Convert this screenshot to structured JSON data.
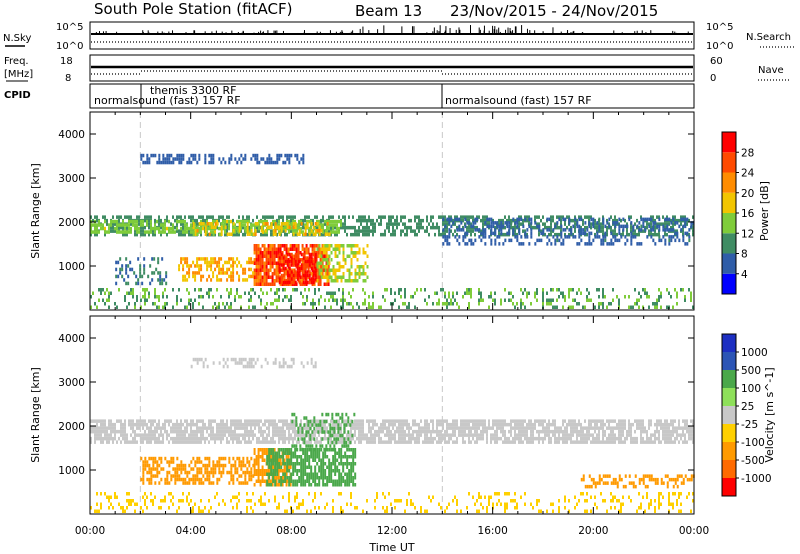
{
  "header": {
    "station": "South Pole Station (fitACF)",
    "beam": "Beam 13",
    "dates": "23/Nov/2015 - 24/Nov/2015"
  },
  "strip1": {
    "left_label": "N.Sky",
    "left_ticks": [
      "10^5",
      "10^0"
    ],
    "right_ticks": [
      "10^5",
      "10^0"
    ],
    "right_label": "N.Search"
  },
  "strip2": {
    "left_label_1": "Freq.",
    "left_label_2": "[MHz]",
    "left_ticks": [
      "18",
      "8"
    ],
    "right_ticks": [
      "60",
      "0"
    ],
    "right_label": "Nave"
  },
  "cpid": {
    "label": "CPID",
    "segments": [
      {
        "text": "normalsound (fast) 157 RF",
        "start_hour": 0
      },
      {
        "text": "themis 3300 RF",
        "start_hour": 2
      },
      {
        "text": "normalsound (fast) 157 RF",
        "start_hour": 14
      }
    ]
  },
  "colors": {
    "power": [
      "#0000ff",
      "#2f5da8",
      "#3f8c63",
      "#7fcc3a",
      "#f2c500",
      "#ff8c00",
      "#ff4a00",
      "#ff0000"
    ],
    "velocity": [
      "#ff0000",
      "#ff6a00",
      "#ff9a00",
      "#ffd000",
      "#c8c8c8",
      "#8ee05a",
      "#4aa84a",
      "#2c55b5",
      "#1d2fc2"
    ],
    "ground": "#c0c0c0"
  },
  "chart_data": [
    {
      "type": "heatmap",
      "panel": "power",
      "xlabel": "",
      "ylabel": "Slant Range [km]",
      "xlim_hours": [
        0,
        24
      ],
      "ylim": [
        0,
        4500
      ],
      "y_ticks": [
        1000,
        2000,
        3000,
        4000
      ],
      "colorbar_label": "Power [dB]",
      "colorbar_ticks": [
        4,
        8,
        12,
        16,
        20,
        24,
        28
      ],
      "colorbar_range": [
        0,
        32
      ],
      "regions": [
        {
          "x0": 0.0,
          "x1": 24.0,
          "y0": 1700,
          "y1": 2150,
          "value": 10,
          "density": 0.55
        },
        {
          "x0": 0.0,
          "x1": 10.0,
          "y0": 1750,
          "y1": 2050,
          "value": 14,
          "density": 0.6
        },
        {
          "x0": 4.0,
          "x1": 9.5,
          "y0": 1700,
          "y1": 2000,
          "value": 18,
          "density": 0.4
        },
        {
          "x0": 6.5,
          "x1": 9.5,
          "y0": 600,
          "y1": 1500,
          "value": 26,
          "density": 0.85
        },
        {
          "x0": 7.5,
          "x1": 9.0,
          "y0": 650,
          "y1": 1300,
          "value": 30,
          "density": 0.7
        },
        {
          "x0": 9.0,
          "x1": 11.0,
          "y0": 700,
          "y1": 1500,
          "value": 16,
          "density": 0.5
        },
        {
          "x0": 3.5,
          "x1": 6.5,
          "y0": 650,
          "y1": 1200,
          "value": 20,
          "density": 0.5
        },
        {
          "x0": 1.0,
          "x1": 3.0,
          "y0": 600,
          "y1": 1200,
          "value": 8,
          "density": 0.3
        },
        {
          "x0": 2.0,
          "x1": 8.5,
          "y0": 3350,
          "y1": 3550,
          "value": 6,
          "density": 0.45
        },
        {
          "x0": 14.0,
          "x1": 24.0,
          "y0": 1500,
          "y1": 2100,
          "value": 7,
          "density": 0.4
        },
        {
          "x0": 0.0,
          "x1": 24.0,
          "y0": 100,
          "y1": 500,
          "value": 12,
          "density": 0.25
        }
      ]
    },
    {
      "type": "heatmap",
      "panel": "velocity",
      "xlabel": "Time UT",
      "ylabel": "Slant Range [km]",
      "xlim_hours": [
        0,
        24
      ],
      "x_ticks": [
        "00:00",
        "04:00",
        "08:00",
        "12:00",
        "16:00",
        "20:00",
        "00:00"
      ],
      "ylim": [
        0,
        4500
      ],
      "y_ticks": [
        1000,
        2000,
        3000,
        4000
      ],
      "colorbar_label": "Velocity [m s^-1]",
      "colorbar_ticks": [
        -1000,
        -500,
        -100,
        -25,
        25,
        100,
        500,
        1000
      ],
      "regions": [
        {
          "x0": 0.0,
          "x1": 24.0,
          "y0": 1650,
          "y1": 2150,
          "value": 0,
          "density": 0.75
        },
        {
          "x0": 2.0,
          "x1": 6.5,
          "y0": 700,
          "y1": 1300,
          "value": -300,
          "density": 0.55
        },
        {
          "x0": 6.5,
          "x1": 8.0,
          "y0": 700,
          "y1": 1500,
          "value": -300,
          "density": 0.7
        },
        {
          "x0": 7.0,
          "x1": 10.5,
          "y0": 700,
          "y1": 1500,
          "value": 300,
          "density": 0.7
        },
        {
          "x0": 8.0,
          "x1": 10.5,
          "y0": 1500,
          "y1": 2300,
          "value": 200,
          "density": 0.3
        },
        {
          "x0": 4.0,
          "x1": 9.0,
          "y0": 3350,
          "y1": 3550,
          "value": 0,
          "density": 0.35
        },
        {
          "x0": 0.0,
          "x1": 24.0,
          "y0": 100,
          "y1": 500,
          "value": -60,
          "density": 0.2
        },
        {
          "x0": 19.5,
          "x1": 24.0,
          "y0": 600,
          "y1": 900,
          "value": -300,
          "density": 0.4
        }
      ]
    }
  ]
}
